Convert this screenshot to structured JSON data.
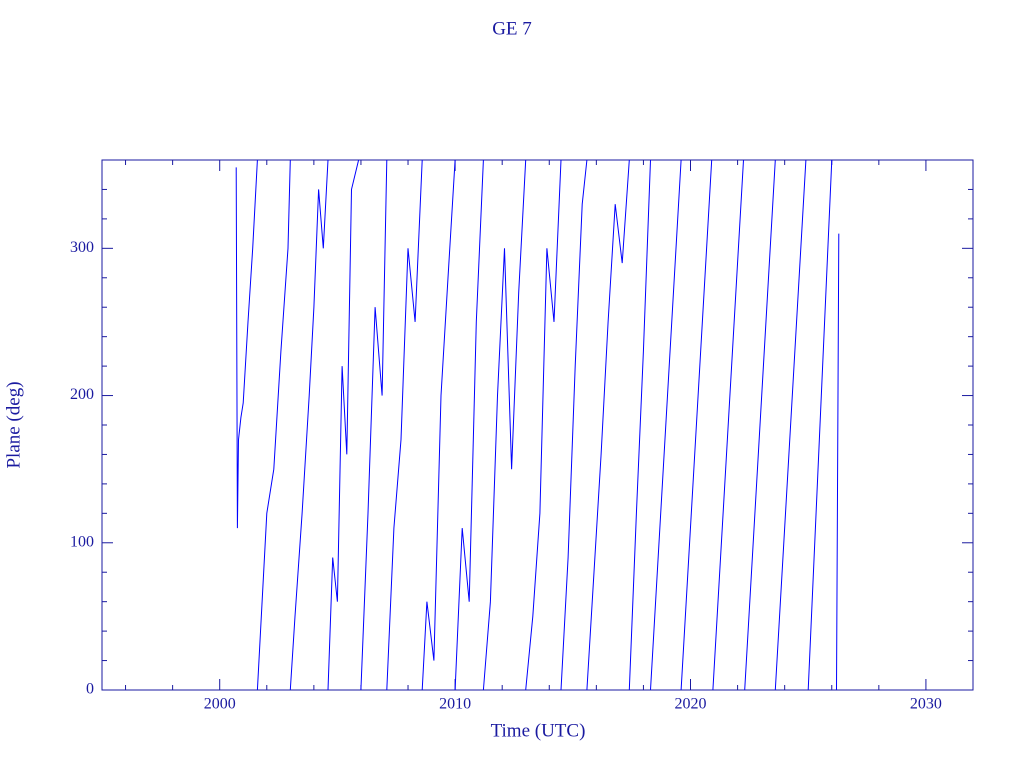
{
  "chart_data": {
    "type": "line",
    "title": "GE 7",
    "x_label": "Time (UTC)",
    "y_label": "Plane (deg)",
    "xlim": [
      1995,
      2032
    ],
    "ylim": [
      0,
      360
    ],
    "xticks": [
      2000,
      2010,
      2020,
      2030
    ],
    "yticks": [
      0,
      100,
      200,
      300
    ],
    "xminorticks": [
      1996,
      1998,
      2002,
      2004,
      2006,
      2008,
      2012,
      2014,
      2016,
      2018,
      2022,
      2024,
      2026,
      2028,
      2032
    ],
    "yminorticks": [
      20,
      40,
      60,
      80,
      120,
      140,
      160,
      180,
      220,
      240,
      260,
      280,
      320,
      340,
      360
    ],
    "frame_color": "#1a1aa0",
    "x": [
      2000.7,
      2000.75,
      2000.8,
      2000.9,
      2001.0,
      2001.2,
      2001.4,
      2001.6,
      null,
      2001.6,
      2001.8,
      2002.0,
      2002.3,
      2002.6,
      2002.9,
      2003.0,
      null,
      2003.0,
      2003.2,
      2003.5,
      2003.8,
      2004.0,
      2004.2,
      2004.4,
      2004.6,
      null,
      2004.6,
      2004.8,
      2005.0,
      2005.2,
      2005.4,
      2005.6,
      2005.9,
      null,
      2006.0,
      2006.3,
      2006.6,
      2006.9,
      2007.1,
      null,
      2007.1,
      2007.4,
      2007.7,
      2008.0,
      2008.3,
      2008.6,
      null,
      2008.6,
      2008.8,
      2009.1,
      2009.4,
      2009.7,
      2010.0,
      null,
      2010.0,
      2010.3,
      2010.6,
      2010.9,
      2011.2,
      null,
      2011.2,
      2011.5,
      2011.8,
      2012.1,
      2012.4,
      2012.7,
      2013.0,
      null,
      2013.0,
      2013.3,
      2013.6,
      2013.9,
      2014.2,
      2014.5,
      null,
      2014.5,
      2014.8,
      2015.1,
      2015.4,
      2015.6,
      null,
      2015.6,
      2015.9,
      2016.2,
      2016.5,
      2016.8,
      2017.1,
      2017.4,
      null,
      2017.4,
      2017.7,
      2018.0,
      2018.3,
      null,
      2018.3,
      2019.6,
      null,
      2019.6,
      2020.9,
      null,
      2020.95,
      2022.25,
      null,
      2022.3,
      2023.6,
      null,
      2023.6,
      2024.9,
      null,
      2025.0,
      2026.0,
      null,
      2026.2,
      2026.3
    ],
    "series": [
      {
        "name": "GE 7",
        "color": "#0000ff",
        "values": [
          355,
          110,
          170,
          185,
          195,
          250,
          300,
          360,
          null,
          0,
          60,
          120,
          150,
          230,
          300,
          360,
          null,
          0,
          50,
          120,
          200,
          260,
          340,
          300,
          360,
          null,
          0,
          90,
          60,
          220,
          160,
          340,
          360,
          null,
          0,
          120,
          260,
          200,
          360,
          null,
          0,
          110,
          170,
          300,
          250,
          360,
          null,
          0,
          60,
          20,
          200,
          280,
          360,
          null,
          0,
          110,
          60,
          250,
          360,
          null,
          0,
          60,
          200,
          300,
          150,
          270,
          360,
          null,
          0,
          50,
          120,
          300,
          250,
          360,
          null,
          0,
          90,
          220,
          330,
          360,
          null,
          0,
          80,
          160,
          250,
          330,
          290,
          360,
          null,
          0,
          120,
          230,
          360,
          null,
          0,
          360,
          null,
          0,
          360,
          null,
          0,
          360,
          null,
          0,
          360,
          null,
          0,
          360,
          null,
          0,
          360,
          null,
          0,
          310
        ]
      }
    ]
  }
}
